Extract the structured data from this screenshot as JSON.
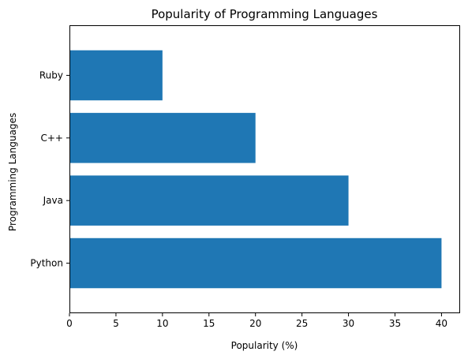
{
  "chart_data": {
    "type": "bar",
    "orientation": "horizontal",
    "title": "Popularity of Programming Languages",
    "xlabel": "Popularity (%)",
    "ylabel": "Programming Languages",
    "categories": [
      "Python",
      "Java",
      "C++",
      "Ruby"
    ],
    "values": [
      40,
      30,
      20,
      10
    ],
    "xlim": [
      0,
      42
    ],
    "xticks": [
      "0",
      "5",
      "10",
      "15",
      "20",
      "25",
      "30",
      "35",
      "40"
    ],
    "grid": false,
    "bar_color": "#1f77b4"
  }
}
